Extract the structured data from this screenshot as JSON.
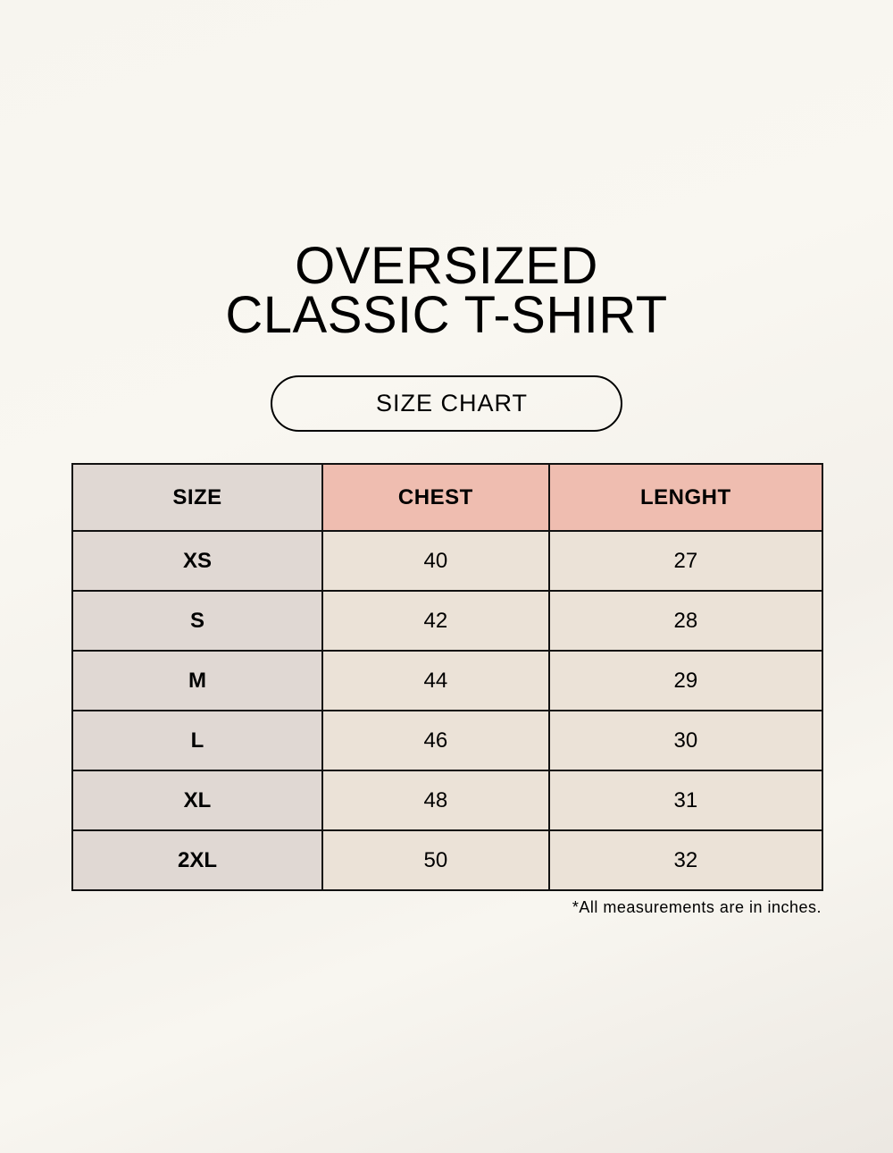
{
  "title": {
    "line1": "OVERSIZED",
    "line2": "CLASSIC T-SHIRT"
  },
  "subtitle": "SIZE CHART",
  "colors": {
    "size_column": "#e0d8d3",
    "header_accent": "#efbdb0",
    "cell": "#ebe2d7"
  },
  "table": {
    "headers": [
      "SIZE",
      "CHEST",
      "LENGHT"
    ],
    "rows": [
      [
        "XS",
        "40",
        "27"
      ],
      [
        "S",
        "42",
        "28"
      ],
      [
        "M",
        "44",
        "29"
      ],
      [
        "L",
        "46",
        "30"
      ],
      [
        "XL",
        "48",
        "31"
      ],
      [
        "2XL",
        "50",
        "32"
      ]
    ]
  },
  "note": "*All measurements are in inches."
}
